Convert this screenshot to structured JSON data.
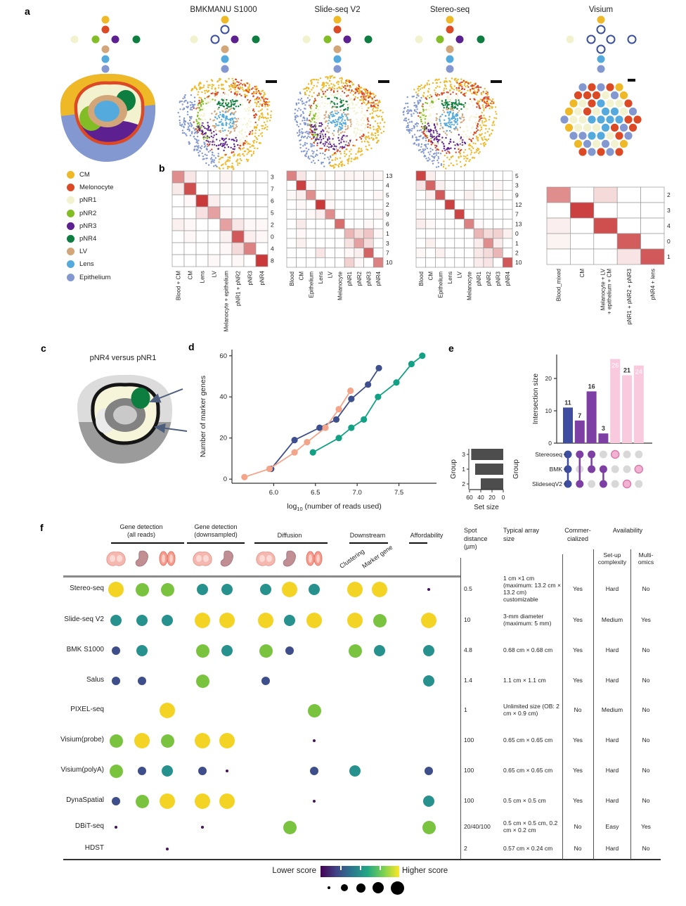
{
  "colors": {
    "cell_types": {
      "CM": "#efb826",
      "Melonocyte": "#dc4a25",
      "pNR1": "#f3f2cf",
      "pNR2": "#83bd26",
      "pNR3": "#5c2090",
      "pNR4": "#0d7d40",
      "LV": "#d2a679",
      "Lens": "#54aadd",
      "Epithelium": "#8398d0"
    },
    "heat_max": "#c62f2f",
    "upset": {
      "triple": "#3f4da0",
      "double": "#7e3fa5",
      "single_bar": "#f9c9de",
      "single_dot": "#f2b3d2",
      "single_stroke": "#d97bad",
      "inactive": "#d8d8d8",
      "setsize_bar": "#4d4d4d"
    },
    "series": {
      "navy": "#3d4f8c",
      "salmon": "#f4a489",
      "teal": "#12a184"
    },
    "score_palette": [
      {
        "score": 1,
        "color": "#46115e",
        "diam": 4
      },
      {
        "score": 2,
        "color": "#3d4e8a",
        "diam": 12
      },
      {
        "score": 3,
        "color": "#27918d",
        "diam": 16
      },
      {
        "score": 4,
        "color": "#79c33f",
        "diam": 19
      },
      {
        "score": 5,
        "color": "#f3d425",
        "diam": 22
      }
    ],
    "tissue_icon": {
      "brain": "#f5b8b0",
      "brain_stroke": "#e89a90",
      "embryo": "#c08e93",
      "ob": "#f79b8d",
      "ob_stroke": "#e2766a"
    }
  },
  "panel_a": {
    "label": "a",
    "column_titles": [
      "BMKMANU S1000",
      "Slide-seq V2",
      "Stereo-seq",
      "Visium"
    ],
    "legend": [
      {
        "name": "CM"
      },
      {
        "name": "Melonocyte"
      },
      {
        "name": "pNR1"
      },
      {
        "name": "pNR2"
      },
      {
        "name": "pNR3"
      },
      {
        "name": "pNR4"
      },
      {
        "name": "LV"
      },
      {
        "name": "Lens"
      },
      {
        "name": "Epithelium"
      }
    ],
    "trees": {
      "reference": {
        "open": []
      },
      "bmk": {
        "open": [
          "Melonocyte",
          "pNR2"
        ]
      },
      "slideseq": {
        "open": []
      },
      "stereoseq": {
        "open": []
      },
      "visium": {
        "open": [
          "Melonocyte",
          "pNR2",
          "pNR3",
          "pNR4",
          "LV"
        ]
      }
    }
  },
  "panel_b": {
    "label": "b",
    "heatmaps": [
      {
        "row_labels": [
          "3",
          "7",
          "6",
          "5",
          "2",
          "0",
          "4",
          "8"
        ],
        "col_labels": [
          "Blood + CM",
          "CM",
          "Lens",
          "LV",
          "Melanocyte + epithelium",
          "pNR1 + pNR2",
          "pNR3",
          "pNR4"
        ],
        "values": [
          [
            0.55,
            0.12,
            0,
            0,
            0.06,
            0,
            0,
            0
          ],
          [
            0.1,
            0.85,
            0,
            0,
            0.03,
            0,
            0,
            0
          ],
          [
            0,
            0.04,
            0.95,
            0.08,
            0,
            0,
            0,
            0
          ],
          [
            0,
            0,
            0.15,
            0.45,
            0.04,
            0,
            0,
            0
          ],
          [
            0.07,
            0.04,
            0,
            0,
            0.45,
            0.12,
            0.04,
            0.04
          ],
          [
            0,
            0.04,
            0,
            0,
            0.07,
            0.8,
            0.08,
            0.04
          ],
          [
            0,
            0,
            0,
            0,
            0.04,
            0.18,
            0.6,
            0
          ],
          [
            0,
            0,
            0,
            0.04,
            0,
            0.04,
            0,
            0.95
          ]
        ]
      },
      {
        "row_labels": [
          "13",
          "4",
          "5",
          "2",
          "9",
          "6",
          "1",
          "3",
          "7",
          "10"
        ],
        "col_labels": [
          "Blood",
          "CM",
          "Epithelium",
          "Lens",
          "LV",
          "Melanocyte",
          "pNR1",
          "pNR2",
          "pNR3",
          "pNR4"
        ],
        "values": [
          [
            0.6,
            0.12,
            0,
            0.06,
            0,
            0.04,
            0.06,
            0.04,
            0.06,
            0.04
          ],
          [
            0,
            0.92,
            0.04,
            0,
            0,
            0,
            0,
            0,
            0,
            0
          ],
          [
            0.04,
            0.08,
            0.55,
            0,
            0.04,
            0,
            0,
            0,
            0,
            0.04
          ],
          [
            0,
            0.04,
            0,
            0.95,
            0.04,
            0,
            0,
            0,
            0,
            0
          ],
          [
            0,
            0,
            0.04,
            0.08,
            0.55,
            0,
            0,
            0,
            0,
            0.04
          ],
          [
            0,
            0.1,
            0,
            0,
            0,
            0.7,
            0,
            0,
            0.04,
            0
          ],
          [
            0,
            0.04,
            0,
            0,
            0,
            0,
            0.35,
            0.18,
            0.28,
            0.04
          ],
          [
            0,
            0.07,
            0,
            0,
            0,
            0,
            0.14,
            0.45,
            0.18,
            0
          ],
          [
            0,
            0,
            0,
            0.12,
            0,
            0,
            0.04,
            0.08,
            0.75,
            0
          ],
          [
            0,
            0,
            0,
            0,
            0,
            0,
            0.22,
            0.04,
            0,
            0.6
          ]
        ]
      },
      {
        "row_labels": [
          "5",
          "3",
          "9",
          "12",
          "7",
          "13",
          "0",
          "1",
          "2",
          "10"
        ],
        "col_labels": [
          "Blood",
          "CM",
          "Epithelium",
          "Lens",
          "LV",
          "Melanocyte",
          "pNR1",
          "pNR2",
          "pNR3",
          "pNR4"
        ],
        "values": [
          [
            0.9,
            0.08,
            0,
            0,
            0,
            0,
            0,
            0,
            0,
            0
          ],
          [
            0.13,
            0.75,
            0.07,
            0,
            0,
            0,
            0.04,
            0,
            0.04,
            0
          ],
          [
            0,
            0.08,
            0.8,
            0,
            0,
            0.07,
            0,
            0,
            0.04,
            0
          ],
          [
            0,
            0,
            0,
            0.92,
            0,
            0,
            0,
            0,
            0,
            0
          ],
          [
            0.04,
            0,
            0,
            0,
            0.9,
            0,
            0,
            0,
            0,
            0
          ],
          [
            0.09,
            0.04,
            0,
            0,
            0,
            0.6,
            0.04,
            0,
            0,
            0
          ],
          [
            0,
            0,
            0,
            0,
            0,
            0,
            0.35,
            0.18,
            0.22,
            0.07
          ],
          [
            0,
            0.07,
            0,
            0,
            0,
            0,
            0.09,
            0.55,
            0.09,
            0
          ],
          [
            0.04,
            0,
            0.07,
            0,
            0,
            0,
            0.11,
            0.18,
            0.35,
            0
          ],
          [
            0,
            0,
            0,
            0,
            0,
            0,
            0.09,
            0.13,
            0,
            0.8
          ]
        ]
      },
      {
        "row_labels": [
          "2",
          "3",
          "4",
          "0",
          "1"
        ],
        "col_labels": [
          "Blood_mixed",
          "CM",
          "Melanocyte + LV\n+ epithelium + CM",
          "pNR1 + pNR2 + pNR3",
          "pNR4 + lens"
        ],
        "values": [
          [
            0.55,
            0,
            0.18,
            0,
            0
          ],
          [
            0,
            0.92,
            0,
            0,
            0
          ],
          [
            0.08,
            0,
            0.85,
            0,
            0
          ],
          [
            0.06,
            0,
            0,
            0.78,
            0
          ],
          [
            0,
            0,
            0,
            0.13,
            0.8
          ]
        ]
      }
    ]
  },
  "panel_c": {
    "label": "c",
    "title": "pNR4 versus pNR1"
  },
  "panel_d": {
    "label": "d"
  },
  "panel_e": {
    "label": "e"
  },
  "chart_data": [
    {
      "id": "marker-genes-vs-reads",
      "type": "line",
      "xlabel": "log10 (number of reads used)",
      "ylabel": "Number of marker genes",
      "xlim": [
        5.5,
        7.95
      ],
      "ylim": [
        -2,
        63
      ],
      "xticks": [
        "6.0",
        "6.5",
        "7.0",
        "7.5"
      ],
      "xtick_vals": [
        6.0,
        6.5,
        7.0,
        7.5
      ],
      "yticks": [
        0,
        20,
        40,
        60
      ],
      "grid": false,
      "series": [
        {
          "name": "navy",
          "x": [
            5.97,
            6.25,
            6.55,
            6.75,
            6.93,
            7.13,
            7.26
          ],
          "y": [
            5,
            19,
            25,
            29,
            39,
            46,
            54
          ]
        },
        {
          "name": "salmon",
          "x": [
            5.65,
            5.95,
            6.25,
            6.4,
            6.62,
            6.78,
            6.92
          ],
          "y": [
            1,
            5,
            13,
            18,
            25,
            34,
            43
          ]
        },
        {
          "name": "teal",
          "x": [
            6.47,
            6.78,
            6.93,
            7.08,
            7.25,
            7.47,
            7.65,
            7.78
          ],
          "y": [
            13,
            20,
            25,
            29,
            40,
            47,
            56,
            60
          ]
        }
      ]
    },
    {
      "id": "upset-marker-genes",
      "type": "upset",
      "ylabel": "Intersection size",
      "yticks": [
        0,
        10,
        20
      ],
      "set_rows": [
        "Stereoseq",
        "BMK",
        "SlideseqV2"
      ],
      "group_axis_label": "Group",
      "intersections": [
        {
          "size": 11,
          "sets": [
            "Stereoseq",
            "BMK",
            "SlideseqV2"
          ],
          "color_key": "triple"
        },
        {
          "size": 7,
          "sets": [
            "Stereoseq",
            "SlideseqV2"
          ],
          "color_key": "double"
        },
        {
          "size": 16,
          "sets": [
            "Stereoseq",
            "BMK"
          ],
          "color_key": "double"
        },
        {
          "size": 3,
          "sets": [
            "BMK",
            "SlideseqV2"
          ],
          "color_key": "double"
        },
        {
          "size": 26,
          "sets": [
            "Stereoseq"
          ],
          "color_key": "single"
        },
        {
          "size": 21,
          "sets": [
            "SlideseqV2"
          ],
          "color_key": "single"
        },
        {
          "size": 24,
          "sets": [
            "BMK"
          ],
          "color_key": "single"
        }
      ],
      "set_size": {
        "xlabel": "Set size",
        "xticks": [
          60,
          40,
          20,
          0
        ],
        "rows": [
          {
            "group": "3",
            "value": 57
          },
          {
            "group": "1",
            "value": 50
          },
          {
            "group": "2",
            "value": 40
          }
        ]
      }
    }
  ],
  "panel_f": {
    "label": "f",
    "group_headers": [
      {
        "line1": "Gene detection",
        "line2": "(all reads)"
      },
      {
        "line1": "Gene detection",
        "line2": "(downsampled)"
      },
      {
        "line1": "Diffusion",
        "line2": ""
      },
      {
        "line1": "Downstream",
        "line2": ""
      },
      {
        "line1": "Affordability",
        "line2": ""
      }
    ],
    "downstream_sublabels": [
      "Clustering",
      "Marker gene"
    ],
    "headers": {
      "spot": [
        "Spot",
        "distance",
        "(µm)"
      ],
      "array": [
        "Typical array",
        "size"
      ],
      "commercialized": [
        "Commer-",
        "cialized"
      ],
      "availability": "Availability",
      "setup": [
        "Set-up",
        "complexity"
      ],
      "multiomics": [
        "Multi-",
        "omics"
      ]
    },
    "icon_columns": [
      "brain",
      "embryo",
      "ob",
      "brain",
      "embryo",
      "brain",
      "embryo",
      "ob"
    ],
    "rows": [
      {
        "name": "Stereo-seq",
        "scores": [
          5,
          4,
          4,
          3,
          3,
          3,
          5,
          3,
          5,
          5,
          1
        ],
        "spot": "0.5",
        "array": "1 cm ×1 cm (maximum: 13.2 cm × 13.2 cm) customizable",
        "commercialized": "Yes",
        "setup": "Hard",
        "multiomics": "No"
      },
      {
        "name": "Slide-seq V2",
        "scores": [
          3,
          3,
          3,
          5,
          5,
          5,
          3,
          5,
          5,
          4,
          5
        ],
        "spot": "10",
        "array": "3-mm diameter (maximum: 5 mm)",
        "commercialized": "Yes",
        "setup": "Medium",
        "multiomics": "Yes"
      },
      {
        "name": "BMK S1000",
        "scores": [
          2,
          3,
          0,
          4,
          3,
          4,
          2,
          0,
          4,
          3,
          3
        ],
        "spot": "4.8",
        "array": "0.68 cm × 0.68 cm",
        "commercialized": "Yes",
        "setup": "Hard",
        "multiomics": "No"
      },
      {
        "name": "Salus",
        "scores": [
          2,
          2,
          0,
          4,
          0,
          2,
          0,
          0,
          0,
          0,
          3
        ],
        "spot": "1.4",
        "array": "1.1 cm × 1.1 cm",
        "commercialized": "Yes",
        "setup": "Hard",
        "multiomics": "No"
      },
      {
        "name": "PIXEL-seq",
        "scores": [
          0,
          0,
          5,
          0,
          0,
          0,
          0,
          4,
          0,
          0,
          0
        ],
        "spot": "1",
        "array": "Unlimited size (OB: 2 cm × 0.9 cm)",
        "commercialized": "No",
        "setup": "Medium",
        "multiomics": "No"
      },
      {
        "name": "Visium(probe)",
        "scores": [
          4,
          5,
          4,
          5,
          5,
          0,
          0,
          1,
          0,
          0,
          0
        ],
        "spot": "100",
        "array": "0.65 cm × 0.65 cm",
        "commercialized": "Yes",
        "setup": "Hard",
        "multiomics": "No"
      },
      {
        "name": "Visium(polyA)",
        "scores": [
          4,
          2,
          3,
          2,
          1,
          0,
          0,
          2,
          3,
          0,
          2
        ],
        "spot": "100",
        "array": "0.65 cm × 0.65 cm",
        "commercialized": "Yes",
        "setup": "Hard",
        "multiomics": "No"
      },
      {
        "name": "DynaSpatial",
        "scores": [
          2,
          4,
          5,
          5,
          5,
          0,
          0,
          1,
          0,
          0,
          3
        ],
        "spot": "100",
        "array": "0.5 cm × 0.5 cm",
        "commercialized": "Yes",
        "setup": "Hard",
        "multiomics": "No"
      },
      {
        "name": "DBiT-seq",
        "scores": [
          1,
          0,
          0,
          1,
          0,
          0,
          4,
          0,
          0,
          0,
          4
        ],
        "spot": "20/40/100",
        "array": "0.5 cm × 0.5 cm, 0.2 cm × 0.2 cm",
        "commercialized": "No",
        "setup": "Easy",
        "multiomics": "Yes"
      },
      {
        "name": "HDST",
        "scores": [
          0,
          0,
          1,
          0,
          0,
          0,
          0,
          0,
          0,
          0,
          0
        ],
        "spot": "2",
        "array": "0.57 cm × 0.24 cm",
        "commercialized": "No",
        "setup": "Hard",
        "multiomics": "No"
      }
    ],
    "score_legend": {
      "lower": "Lower score",
      "higher": "Higher score"
    }
  }
}
